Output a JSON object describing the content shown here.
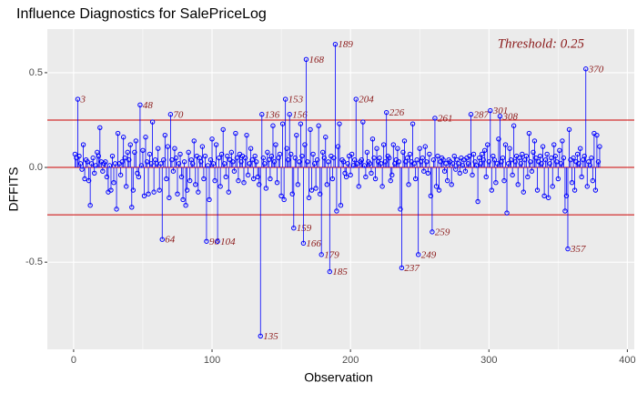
{
  "chart_data": {
    "type": "lollipop",
    "title": "Influence Diagnostics for SalePriceLog",
    "x_label": "Observation",
    "y_label": "DFFITS",
    "threshold": 0.25,
    "threshold_label": "Threshold: 0.25",
    "color": "#0000ff",
    "threshold_color": "#cc0000",
    "label_color": "#8b1a1a",
    "xlim": [
      -19,
      405
    ],
    "ylim": [
      -0.96,
      0.73
    ],
    "xticks": [
      0,
      100,
      200,
      300,
      400
    ],
    "yticks": [
      -0.5,
      {
        "value": 0,
        "label": "0.0"
      },
      0.5
    ],
    "grid": true,
    "x": [
      1,
      2,
      3,
      4,
      5,
      6,
      7,
      8,
      9,
      10,
      11,
      12,
      13,
      14,
      15,
      16,
      17,
      18,
      19,
      20,
      21,
      22,
      23,
      24,
      25,
      26,
      27,
      28,
      29,
      30,
      31,
      32,
      33,
      34,
      35,
      36,
      37,
      38,
      39,
      40,
      41,
      42,
      43,
      44,
      45,
      46,
      47,
      48,
      49,
      50,
      51,
      52,
      53,
      54,
      55,
      56,
      57,
      58,
      59,
      60,
      61,
      62,
      63,
      64,
      65,
      66,
      67,
      68,
      69,
      70,
      71,
      72,
      73,
      74,
      75,
      76,
      77,
      78,
      79,
      80,
      81,
      82,
      83,
      84,
      85,
      86,
      87,
      88,
      89,
      90,
      91,
      92,
      93,
      94,
      95,
      96,
      97,
      98,
      99,
      100,
      101,
      102,
      103,
      104,
      105,
      106,
      107,
      108,
      109,
      110,
      111,
      112,
      113,
      114,
      115,
      116,
      117,
      118,
      119,
      120,
      121,
      122,
      123,
      124,
      125,
      126,
      127,
      128,
      129,
      130,
      131,
      132,
      133,
      134,
      135,
      136,
      137,
      138,
      139,
      140,
      141,
      142,
      143,
      144,
      145,
      146,
      147,
      148,
      149,
      150,
      151,
      152,
      153,
      154,
      155,
      156,
      157,
      158,
      159,
      160,
      161,
      162,
      163,
      164,
      165,
      166,
      167,
      168,
      169,
      170,
      171,
      172,
      173,
      174,
      175,
      176,
      177,
      178,
      179,
      180,
      181,
      182,
      183,
      184,
      185,
      186,
      187,
      188,
      189,
      190,
      191,
      192,
      193,
      194,
      195,
      196,
      197,
      198,
      199,
      200,
      201,
      202,
      203,
      204,
      205,
      206,
      207,
      208,
      209,
      210,
      211,
      212,
      213,
      214,
      215,
      216,
      217,
      218,
      219,
      220,
      221,
      222,
      223,
      224,
      225,
      226,
      227,
      228,
      229,
      230,
      231,
      232,
      233,
      234,
      235,
      236,
      237,
      238,
      239,
      240,
      241,
      242,
      243,
      244,
      245,
      246,
      247,
      248,
      249,
      250,
      251,
      252,
      253,
      254,
      255,
      256,
      257,
      258,
      259,
      260,
      261,
      262,
      263,
      264,
      265,
      266,
      267,
      268,
      269,
      270,
      271,
      272,
      273,
      274,
      275,
      276,
      277,
      278,
      279,
      280,
      281,
      282,
      283,
      284,
      285,
      286,
      287,
      288,
      289,
      290,
      291,
      292,
      293,
      294,
      295,
      296,
      297,
      298,
      299,
      300,
      301,
      302,
      303,
      304,
      305,
      306,
      307,
      308,
      309,
      310,
      311,
      312,
      313,
      314,
      315,
      316,
      317,
      318,
      319,
      320,
      321,
      322,
      323,
      324,
      325,
      326,
      327,
      328,
      329,
      330,
      331,
      332,
      333,
      334,
      335,
      336,
      337,
      338,
      339,
      340,
      341,
      342,
      343,
      344,
      345,
      346,
      347,
      348,
      349,
      350,
      351,
      352,
      353,
      354,
      355,
      356,
      357,
      358,
      359,
      360,
      361,
      362,
      363,
      364,
      365,
      366,
      367,
      368,
      369,
      370,
      371,
      372,
      373,
      374,
      375,
      376,
      377,
      378,
      379,
      380
    ],
    "values": [
      0.07,
      0.05,
      0.36,
      0.06,
      0.02,
      -0.01,
      0.12,
      -0.06,
      0.04,
      0.03,
      -0.07,
      -0.2,
      0.02,
      0.05,
      -0.03,
      0.01,
      0.08,
      0.06,
      0.21,
      0.03,
      -0.02,
      0.02,
      0.03,
      -0.05,
      -0.13,
      0.01,
      -0.12,
      0.06,
      -0.08,
      0.02,
      -0.22,
      0.18,
      0.02,
      -0.04,
      0.03,
      0.16,
      0.05,
      -0.1,
      0.08,
      0.04,
      0.12,
      -0.21,
      -0.12,
      0.08,
      0.14,
      -0.03,
      -0.05,
      0.33,
      0.01,
      0.09,
      -0.15,
      0.16,
      0.03,
      -0.14,
      0.07,
      0.02,
      0.24,
      -0.13,
      0.04,
      0.02,
      0.1,
      -0.12,
      0.02,
      -0.38,
      0.04,
      0.17,
      -0.06,
      0.11,
      -0.16,
      0.28,
      0.04,
      -0.02,
      0.1,
      0.05,
      -0.14,
      0.02,
      0.07,
      -0.05,
      -0.17,
      0.03,
      -0.2,
      -0.12,
      0.08,
      -0.07,
      0.04,
      0.02,
      0.14,
      -0.09,
      0.06,
      -0.13,
      0.05,
      0.03,
      0.11,
      -0.06,
      0.06,
      -0.39,
      0.01,
      -0.17,
      0.04,
      0.15,
      0.02,
      -0.07,
      0.12,
      -0.39,
      0.05,
      -0.1,
      0.07,
      0.2,
      0.02,
      -0.05,
      0.06,
      -0.13,
      0.04,
      0.08,
      0.03,
      -0.02,
      0.18,
      0.05,
      -0.07,
      0.07,
      0.03,
      0.06,
      -0.08,
      0.05,
      0.17,
      -0.04,
      0.02,
      0.1,
      0.04,
      -0.06,
      0.06,
      0.03,
      -0.05,
      -0.09,
      -0.89,
      0.28,
      0.05,
      0.02,
      -0.11,
      0.08,
      0.04,
      -0.06,
      0.06,
      0.22,
      0.03,
      0.12,
      -0.08,
      0.05,
      0.07,
      -0.15,
      0.23,
      -0.17,
      0.36,
      0.1,
      0.04,
      0.28,
      0.07,
      -0.14,
      -0.32,
      0.05,
      0.17,
      -0.09,
      0.03,
      0.23,
      0.06,
      -0.4,
      0.12,
      0.57,
      0.03,
      -0.16,
      0.2,
      -0.12,
      0.07,
      0.02,
      -0.11,
      0.04,
      0.22,
      -0.14,
      -0.46,
      0.08,
      0.05,
      0.16,
      -0.09,
      0.03,
      -0.55,
      0.06,
      -0.06,
      0.05,
      0.65,
      -0.23,
      0.11,
      0.23,
      -0.2,
      0.04,
      0.03,
      -0.03,
      -0.05,
      0.02,
      0.06,
      -0.04,
      0.07,
      0.01,
      0.04,
      0.36,
      0.02,
      -0.1,
      0.03,
      0.04,
      0.24,
      0.01,
      -0.05,
      0.08,
      0.03,
      0.02,
      -0.03,
      0.15,
      0.05,
      -0.06,
      0.1,
      0.03,
      0.05,
      0.02,
      -0.1,
      0.12,
      0.03,
      0.29,
      0.06,
      0.05,
      -0.07,
      -0.04,
      0.12,
      0.02,
      0.04,
      0.1,
      0.03,
      -0.22,
      -0.53,
      0.08,
      0.14,
      0.03,
      0.05,
      -0.09,
      0.07,
      0.03,
      0.23,
      0.02,
      -0.06,
      0.04,
      -0.46,
      0.1,
      0.03,
      0.05,
      -0.02,
      0.11,
      0.03,
      -0.03,
      0.07,
      -0.15,
      -0.34,
      0.04,
      0.26,
      -0.1,
      0.06,
      -0.12,
      0.03,
      0.05,
      0.04,
      -0.02,
      0.02,
      -0.07,
      0.04,
      0.03,
      -0.09,
      0.02,
      0.06,
      -0.01,
      0.04,
      0.02,
      -0.03,
      0.05,
      0.01,
      0.04,
      -0.02,
      0.05,
      0.02,
      0.06,
      0.28,
      -0.04,
      0.07,
      0.03,
      0.01,
      -0.18,
      0.05,
      0.02,
      0.07,
      0.04,
      0.09,
      -0.05,
      0.12,
      0.03,
      0.3,
      -0.12,
      0.06,
      0.04,
      -0.08,
      0.02,
      0.15,
      0.27,
      0.03,
      0.05,
      -0.07,
      0.12,
      -0.24,
      0.02,
      0.1,
      0.04,
      -0.04,
      0.22,
      0.03,
      0.06,
      -0.09,
      0.05,
      0.02,
      0.07,
      -0.13,
      0.04,
      0.06,
      -0.05,
      0.18,
      0.03,
      -0.02,
      0.08,
      0.14,
      0.05,
      -0.12,
      0.03,
      0.06,
      0.02,
      0.11,
      -0.15,
      0.04,
      0.07,
      -0.16,
      0.02,
      0.05,
      -0.1,
      0.12,
      0.06,
      0.03,
      -0.06,
      0.09,
      0.02,
      0.14,
      0.05,
      -0.23,
      -0.15,
      -0.43,
      0.2,
      0.04,
      -0.08,
      0.05,
      -0.12,
      0.03,
      0.07,
      0.02,
      0.1,
      -0.05,
      0.04,
      0.06,
      0.52,
      -0.1,
      0.03,
      0.01,
      0.05,
      -0.07,
      0.18,
      -0.12,
      0.17,
      0.03,
      0.11
    ]
  }
}
